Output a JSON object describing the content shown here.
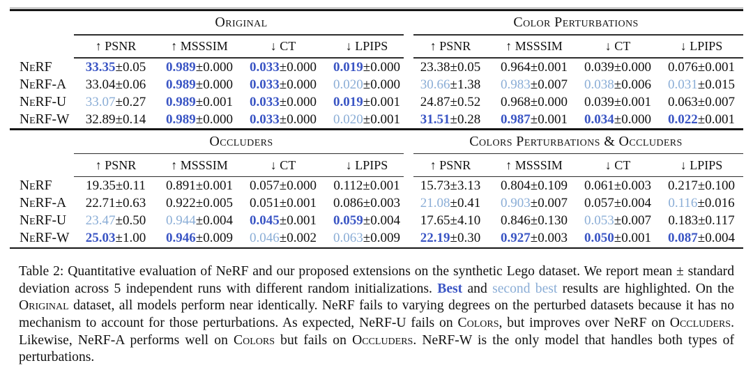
{
  "colors": {
    "best": "#3a55c4",
    "second": "#8aadd6",
    "text": "#111111",
    "rule": "#151515"
  },
  "row_labels": [
    "NeRF",
    "NeRF-A",
    "NeRF-U",
    "NeRF-W"
  ],
  "tables": [
    {
      "groups": [
        "Original",
        "Color Perturbations"
      ],
      "metrics": [
        "↑ PSNR",
        "↑ MSSSIM",
        "↓ CT",
        "↓ LPIPS",
        "↑ PSNR",
        "↑ MSSSIM",
        "↓ CT",
        "↓ LPIPS"
      ],
      "rows": [
        {
          "label": "NeRF",
          "cells": [
            {
              "mean": "33.35",
              "std": "±0.05",
              "hl": "best"
            },
            {
              "mean": "0.989",
              "std": "±0.000",
              "hl": "best"
            },
            {
              "mean": "0.033",
              "std": "±0.000",
              "hl": "best"
            },
            {
              "mean": "0.019",
              "std": "±0.000",
              "hl": "best"
            },
            {
              "mean": "23.38",
              "std": "±0.05",
              "hl": "plain"
            },
            {
              "mean": "0.964",
              "std": "±0.001",
              "hl": "plain"
            },
            {
              "mean": "0.039",
              "std": "±0.000",
              "hl": "plain"
            },
            {
              "mean": "0.076",
              "std": "±0.001",
              "hl": "plain"
            }
          ]
        },
        {
          "label": "NeRF-A",
          "cells": [
            {
              "mean": "33.04",
              "std": "±0.06",
              "hl": "plain"
            },
            {
              "mean": "0.989",
              "std": "±0.000",
              "hl": "best"
            },
            {
              "mean": "0.033",
              "std": "±0.000",
              "hl": "best"
            },
            {
              "mean": "0.020",
              "std": "±0.000",
              "hl": "second"
            },
            {
              "mean": "30.66",
              "std": "±1.38",
              "hl": "second"
            },
            {
              "mean": "0.983",
              "std": "±0.007",
              "hl": "second"
            },
            {
              "mean": "0.038",
              "std": "±0.006",
              "hl": "second"
            },
            {
              "mean": "0.031",
              "std": "±0.015",
              "hl": "second"
            }
          ]
        },
        {
          "label": "NeRF-U",
          "cells": [
            {
              "mean": "33.07",
              "std": "±0.27",
              "hl": "second"
            },
            {
              "mean": "0.989",
              "std": "±0.001",
              "hl": "best"
            },
            {
              "mean": "0.033",
              "std": "±0.000",
              "hl": "best"
            },
            {
              "mean": "0.019",
              "std": "±0.001",
              "hl": "best"
            },
            {
              "mean": "24.87",
              "std": "±0.52",
              "hl": "plain"
            },
            {
              "mean": "0.968",
              "std": "±0.000",
              "hl": "plain"
            },
            {
              "mean": "0.039",
              "std": "±0.001",
              "hl": "plain"
            },
            {
              "mean": "0.063",
              "std": "±0.007",
              "hl": "plain"
            }
          ]
        },
        {
          "label": "NeRF-W",
          "cells": [
            {
              "mean": "32.89",
              "std": "±0.14",
              "hl": "plain"
            },
            {
              "mean": "0.989",
              "std": "±0.000",
              "hl": "best"
            },
            {
              "mean": "0.033",
              "std": "±0.000",
              "hl": "best"
            },
            {
              "mean": "0.020",
              "std": "±0.001",
              "hl": "second"
            },
            {
              "mean": "31.51",
              "std": "±0.28",
              "hl": "best"
            },
            {
              "mean": "0.987",
              "std": "±0.001",
              "hl": "best"
            },
            {
              "mean": "0.034",
              "std": "±0.000",
              "hl": "best"
            },
            {
              "mean": "0.022",
              "std": "±0.001",
              "hl": "best"
            }
          ]
        }
      ]
    },
    {
      "groups": [
        "Occluders",
        "Colors Perturbations & Occluders"
      ],
      "metrics": [
        "↑ PSNR",
        "↑ MSSSIM",
        "↓ CT",
        "↓ LPIPS",
        "↑ PSNR",
        "↑ MSSSIM",
        "↓ CT",
        "↓ LPIPS"
      ],
      "rows": [
        {
          "label": "NeRF",
          "cells": [
            {
              "mean": "19.35",
              "std": "±0.11",
              "hl": "plain"
            },
            {
              "mean": "0.891",
              "std": "±0.001",
              "hl": "plain"
            },
            {
              "mean": "0.057",
              "std": "±0.000",
              "hl": "plain"
            },
            {
              "mean": "0.112",
              "std": "±0.001",
              "hl": "plain"
            },
            {
              "mean": "15.73",
              "std": "±3.13",
              "hl": "plain"
            },
            {
              "mean": "0.804",
              "std": "±0.109",
              "hl": "plain"
            },
            {
              "mean": "0.061",
              "std": "±0.003",
              "hl": "plain"
            },
            {
              "mean": "0.217",
              "std": "±0.100",
              "hl": "plain"
            }
          ]
        },
        {
          "label": "NeRF-A",
          "cells": [
            {
              "mean": "22.71",
              "std": "±0.63",
              "hl": "plain"
            },
            {
              "mean": "0.922",
              "std": "±0.005",
              "hl": "plain"
            },
            {
              "mean": "0.051",
              "std": "±0.001",
              "hl": "plain"
            },
            {
              "mean": "0.086",
              "std": "±0.003",
              "hl": "plain"
            },
            {
              "mean": "21.08",
              "std": "±0.41",
              "hl": "second"
            },
            {
              "mean": "0.903",
              "std": "±0.007",
              "hl": "second"
            },
            {
              "mean": "0.057",
              "std": "±0.004",
              "hl": "plain"
            },
            {
              "mean": "0.116",
              "std": "±0.016",
              "hl": "second"
            }
          ]
        },
        {
          "label": "NeRF-U",
          "cells": [
            {
              "mean": "23.47",
              "std": "±0.50",
              "hl": "second"
            },
            {
              "mean": "0.944",
              "std": "±0.004",
              "hl": "second"
            },
            {
              "mean": "0.045",
              "std": "±0.001",
              "hl": "best"
            },
            {
              "mean": "0.059",
              "std": "±0.004",
              "hl": "best"
            },
            {
              "mean": "17.65",
              "std": "±4.10",
              "hl": "plain"
            },
            {
              "mean": "0.846",
              "std": "±0.130",
              "hl": "plain"
            },
            {
              "mean": "0.053",
              "std": "±0.007",
              "hl": "second"
            },
            {
              "mean": "0.183",
              "std": "±0.117",
              "hl": "plain"
            }
          ]
        },
        {
          "label": "NeRF-W",
          "cells": [
            {
              "mean": "25.03",
              "std": "±1.00",
              "hl": "best"
            },
            {
              "mean": "0.946",
              "std": "±0.009",
              "hl": "best"
            },
            {
              "mean": "0.046",
              "std": "±0.002",
              "hl": "second"
            },
            {
              "mean": "0.063",
              "std": "±0.009",
              "hl": "second"
            },
            {
              "mean": "22.19",
              "std": "±0.30",
              "hl": "best"
            },
            {
              "mean": "0.927",
              "std": "±0.003",
              "hl": "best"
            },
            {
              "mean": "0.050",
              "std": "±0.001",
              "hl": "best"
            },
            {
              "mean": "0.087",
              "std": "±0.004",
              "hl": "best"
            }
          ]
        }
      ]
    }
  ],
  "caption": {
    "segments": [
      {
        "text": "Table 2: Quantitative evaluation of NeRF and our proposed extensions on the synthetic Lego dataset. We report mean ± standard deviation across 5 independent runs with different random initializations. ",
        "style": "plain"
      },
      {
        "text": "Best",
        "style": "best"
      },
      {
        "text": " and ",
        "style": "plain"
      },
      {
        "text": "second best",
        "style": "second"
      },
      {
        "text": " results are highlighted. On the ",
        "style": "plain"
      },
      {
        "text": "Original",
        "style": "smallcaps"
      },
      {
        "text": " dataset, all models perform near identically. NeRF fails to varying degrees on the perturbed datasets because it has no mechanism to account for those perturbations. As expected, NeRF-U fails on ",
        "style": "plain"
      },
      {
        "text": "Colors",
        "style": "smallcaps"
      },
      {
        "text": ", but improves over NeRF on ",
        "style": "plain"
      },
      {
        "text": "Occluders",
        "style": "smallcaps"
      },
      {
        "text": ". Likewise, NeRF-A performs well on ",
        "style": "plain"
      },
      {
        "text": "Colors",
        "style": "smallcaps"
      },
      {
        "text": " but fails on ",
        "style": "plain"
      },
      {
        "text": "Occluders",
        "style": "smallcaps"
      },
      {
        "text": ". NeRF-W is the only model that handles both types of perturbations.",
        "style": "plain"
      }
    ]
  }
}
